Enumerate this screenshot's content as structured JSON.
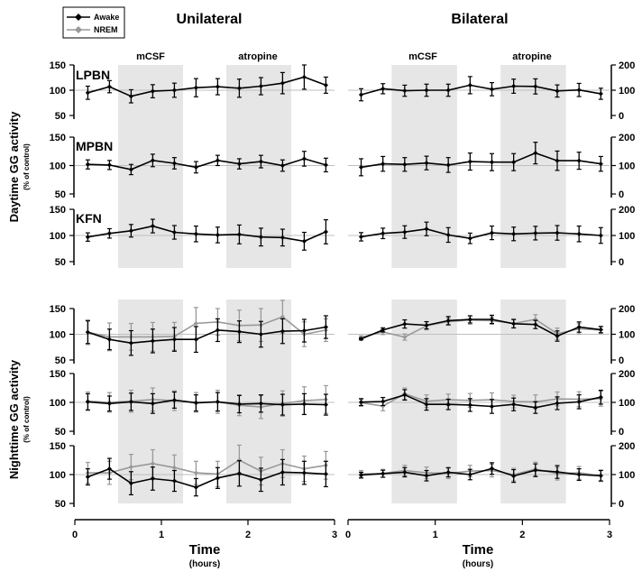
{
  "legend": {
    "entries": [
      {
        "label": "Awake",
        "color": "#000000",
        "marker": "diamond"
      },
      {
        "label": "NREM",
        "color": "#999999",
        "marker": "diamond"
      }
    ]
  },
  "columns": {
    "left": "Unilateral",
    "right": "Bilateral"
  },
  "rows": {
    "day_label": "Daytime GG activity",
    "day_sub": "(% of control)",
    "night_label": "Nighttime GG activity",
    "night_sub": "(% of control)"
  },
  "phases": [
    {
      "label": "mCSF",
      "x_start": 0.5,
      "x_end": 1.25
    },
    {
      "label": "atropine",
      "x_start": 1.75,
      "x_end": 2.5
    }
  ],
  "x_axis": {
    "label": "Time",
    "sublabel": "(hours)",
    "ticks": [
      "0",
      "1",
      "2",
      "3"
    ],
    "range": [
      0,
      3
    ]
  },
  "colors": {
    "awake": "#000000",
    "nrem": "#999999",
    "shade": "#e6e6e6",
    "baseline": "#bfbfbf"
  },
  "chart_data": [
    {
      "type": "line",
      "column": "Unilateral",
      "row": "daytime",
      "panel": "LPBN",
      "ylim": [
        50,
        150
      ],
      "yticks": [
        "50",
        "100",
        "150"
      ],
      "x": [
        0.15,
        0.4,
        0.65,
        0.9,
        1.15,
        1.4,
        1.65,
        1.9,
        2.15,
        2.4,
        2.65,
        2.9
      ],
      "series": [
        {
          "name": "Awake",
          "values": [
            95,
            107,
            88,
            98,
            100,
            105,
            107,
            104,
            108,
            114,
            126,
            110
          ],
          "errors": [
            13,
            12,
            13,
            13,
            14,
            18,
            16,
            18,
            17,
            21,
            24,
            16
          ]
        }
      ]
    },
    {
      "type": "line",
      "column": "Unilateral",
      "row": "daytime",
      "panel": "MPBN",
      "ylim": [
        50,
        150
      ],
      "yticks": [
        "50",
        "100",
        "150"
      ],
      "x": [
        0.15,
        0.4,
        0.65,
        0.9,
        1.15,
        1.4,
        1.65,
        1.9,
        2.15,
        2.4,
        2.65,
        2.9
      ],
      "series": [
        {
          "name": "Awake",
          "values": [
            102,
            101,
            93,
            109,
            104,
            97,
            109,
            103,
            107,
            100,
            112,
            101
          ],
          "errors": [
            8,
            8,
            9,
            11,
            10,
            10,
            9,
            9,
            11,
            10,
            13,
            12
          ]
        }
      ]
    },
    {
      "type": "line",
      "column": "Unilateral",
      "row": "daytime",
      "panel": "KFN",
      "ylim": [
        50,
        150
      ],
      "yticks": [
        "50",
        "100",
        "150"
      ],
      "x": [
        0.15,
        0.4,
        0.65,
        0.9,
        1.15,
        1.4,
        1.65,
        1.9,
        2.15,
        2.4,
        2.65,
        2.9
      ],
      "series": [
        {
          "name": "Awake",
          "values": [
            97,
            104,
            109,
            118,
            106,
            103,
            101,
            102,
            97,
            96,
            89,
            107
          ],
          "errors": [
            8,
            9,
            12,
            13,
            13,
            15,
            15,
            18,
            17,
            16,
            17,
            23
          ]
        }
      ]
    },
    {
      "type": "line",
      "column": "Unilateral",
      "row": "nighttime",
      "panel": "",
      "ylim": [
        50,
        150
      ],
      "yticks": [
        "50",
        "100",
        "150"
      ],
      "x": [
        0.15,
        0.4,
        0.65,
        0.9,
        1.15,
        1.4,
        1.65,
        1.9,
        2.15,
        2.4,
        2.65,
        2.9
      ],
      "series": [
        {
          "name": "Awake",
          "values": [
            104,
            90,
            83,
            87,
            90,
            90,
            108,
            105,
            100,
            106,
            107,
            114
          ],
          "errors": [
            22,
            20,
            24,
            23,
            23,
            25,
            22,
            21,
            25,
            24,
            22,
            22
          ]
        },
        {
          "name": "NREM",
          "values": [
            104,
            95,
            95,
            95,
            96,
            121,
            124,
            117,
            118,
            134,
            100,
            108
          ],
          "errors": [
            24,
            27,
            26,
            28,
            27,
            31,
            26,
            30,
            32,
            32,
            24,
            22
          ]
        }
      ]
    },
    {
      "type": "line",
      "column": "Unilateral",
      "row": "nighttime",
      "panel": "",
      "ylim": [
        50,
        150
      ],
      "yticks": [
        "50",
        "100",
        "150"
      ],
      "x": [
        0.15,
        0.4,
        0.65,
        0.9,
        1.15,
        1.4,
        1.65,
        1.9,
        2.15,
        2.4,
        2.65,
        2.9
      ],
      "series": [
        {
          "name": "Awake",
          "values": [
            101,
            98,
            101,
            98,
            104,
            99,
            101,
            97,
            98,
            96,
            97,
            96
          ],
          "errors": [
            14,
            13,
            15,
            17,
            14,
            14,
            16,
            15,
            15,
            18,
            18,
            18
          ]
        },
        {
          "name": "NREM",
          "values": [
            102,
            100,
            102,
            105,
            103,
            100,
            101,
            95,
            92,
            98,
            103,
            105
          ],
          "errors": [
            16,
            17,
            19,
            20,
            17,
            17,
            20,
            18,
            20,
            22,
            24,
            24
          ]
        }
      ]
    },
    {
      "type": "line",
      "column": "Unilateral",
      "row": "nighttime",
      "panel": "",
      "ylim": [
        50,
        150
      ],
      "yticks": [
        "50",
        "100",
        "150"
      ],
      "x": [
        0.15,
        0.4,
        0.65,
        0.9,
        1.15,
        1.4,
        1.65,
        1.9,
        2.15,
        2.4,
        2.65,
        2.9
      ],
      "series": [
        {
          "name": "Awake",
          "values": [
            96,
            110,
            85,
            93,
            89,
            78,
            94,
            102,
            91,
            104,
            103,
            101
          ],
          "errors": [
            14,
            18,
            20,
            20,
            18,
            15,
            18,
            22,
            20,
            22,
            20,
            22
          ]
        },
        {
          "name": "NREM",
          "values": [
            103,
            103,
            113,
            119,
            112,
            103,
            101,
            125,
            106,
            119,
            110,
            116
          ],
          "errors": [
            18,
            20,
            22,
            24,
            22,
            20,
            22,
            26,
            24,
            24,
            22,
            24
          ]
        }
      ]
    },
    {
      "type": "line",
      "column": "Bilateral",
      "row": "daytime",
      "panel": "",
      "ylim": [
        0,
        200
      ],
      "yticks": [
        "0",
        "100",
        "200"
      ],
      "x": [
        0.15,
        0.4,
        0.65,
        0.9,
        1.15,
        1.4,
        1.65,
        1.9,
        2.15,
        2.4,
        2.65,
        2.9
      ],
      "series": [
        {
          "name": "Awake",
          "values": [
            82,
            106,
            98,
            100,
            100,
            120,
            104,
            116,
            115,
            97,
            101,
            86
          ],
          "errors": [
            24,
            20,
            22,
            24,
            24,
            34,
            26,
            28,
            30,
            24,
            26,
            22
          ]
        }
      ]
    },
    {
      "type": "line",
      "column": "Bilateral",
      "row": "daytime",
      "panel": "",
      "ylim": [
        0,
        200
      ],
      "yticks": [
        "0",
        "100",
        "200"
      ],
      "x": [
        0.15,
        0.4,
        0.65,
        0.9,
        1.15,
        1.4,
        1.65,
        1.9,
        2.15,
        2.4,
        2.65,
        2.9
      ],
      "series": [
        {
          "name": "Awake",
          "values": [
            94,
            106,
            104,
            109,
            102,
            114,
            112,
            112,
            144,
            117,
            117,
            106
          ],
          "errors": [
            30,
            26,
            24,
            24,
            26,
            30,
            30,
            30,
            38,
            34,
            30,
            26
          ]
        }
      ]
    },
    {
      "type": "line",
      "column": "Bilateral",
      "row": "daytime",
      "panel": "",
      "ylim": [
        0,
        200
      ],
      "yticks": [
        "0",
        "100",
        "200"
      ],
      "x": [
        0.15,
        0.4,
        0.65,
        0.9,
        1.15,
        1.4,
        1.65,
        1.9,
        2.15,
        2.4,
        2.65,
        2.9
      ],
      "series": [
        {
          "name": "Awake",
          "values": [
            95,
            108,
            113,
            125,
            102,
            89,
            110,
            106,
            109,
            110,
            106,
            100
          ],
          "errors": [
            16,
            20,
            24,
            26,
            28,
            20,
            26,
            26,
            26,
            28,
            30,
            30
          ]
        }
      ]
    },
    {
      "type": "line",
      "column": "Bilateral",
      "row": "nighttime",
      "panel": "",
      "ylim": [
        0,
        200
      ],
      "yticks": [
        "0",
        "100",
        "200"
      ],
      "x": [
        0.15,
        0.4,
        0.65,
        0.9,
        1.15,
        1.4,
        1.65,
        1.9,
        2.15,
        2.4,
        2.65,
        2.9
      ],
      "series": [
        {
          "name": "Awake",
          "values": [
            82,
            117,
            140,
            135,
            153,
            158,
            158,
            141,
            138,
            93,
            128,
            118
          ],
          "errors": [
            4,
            8,
            16,
            14,
            16,
            14,
            16,
            16,
            16,
            20,
            20,
            12
          ]
        },
        {
          "name": "NREM",
          "values": [
            88,
            109,
            89,
            133,
            149,
            155,
            153,
            142,
            158,
            102,
            121,
            117
          ],
          "errors": [
            6,
            10,
            12,
            16,
            14,
            16,
            14,
            18,
            18,
            22,
            20,
            14
          ]
        }
      ]
    },
    {
      "type": "line",
      "column": "Bilateral",
      "row": "nighttime",
      "panel": "",
      "ylim": [
        0,
        200
      ],
      "yticks": [
        "0",
        "100",
        "200"
      ],
      "x": [
        0.15,
        0.4,
        0.65,
        0.9,
        1.15,
        1.4,
        1.65,
        1.9,
        2.15,
        2.4,
        2.65,
        2.9
      ],
      "series": [
        {
          "name": "Awake",
          "values": [
            101,
            103,
            126,
            93,
            93,
            91,
            86,
            93,
            82,
            97,
            102,
            118
          ],
          "errors": [
            12,
            14,
            18,
            20,
            18,
            22,
            24,
            22,
            20,
            22,
            24,
            24
          ]
        },
        {
          "name": "NREM",
          "values": [
            99,
            87,
            130,
            104,
            109,
            107,
            109,
            103,
            102,
            112,
            111,
            113
          ],
          "errors": [
            12,
            16,
            20,
            22,
            20,
            24,
            24,
            22,
            24,
            24,
            26,
            26
          ]
        }
      ]
    },
    {
      "type": "line",
      "column": "Bilateral",
      "row": "nighttime",
      "panel": "",
      "ylim": [
        0,
        200
      ],
      "yticks": [
        "0",
        "100",
        "200"
      ],
      "x": [
        0.15,
        0.4,
        0.65,
        0.9,
        1.15,
        1.4,
        1.65,
        1.9,
        2.15,
        2.4,
        2.65,
        2.9
      ],
      "series": [
        {
          "name": "Awake",
          "values": [
            98,
            103,
            108,
            96,
            108,
            100,
            121,
            95,
            115,
            109,
            100,
            96
          ],
          "errors": [
            10,
            12,
            16,
            18,
            16,
            18,
            20,
            22,
            22,
            22,
            20,
            18
          ]
        },
        {
          "name": "NREM",
          "values": [
            102,
            104,
            114,
            106,
            104,
            112,
            114,
            100,
            119,
            103,
            106,
            96
          ],
          "errors": [
            12,
            14,
            18,
            20,
            18,
            20,
            22,
            22,
            24,
            22,
            22,
            20
          ]
        }
      ]
    }
  ]
}
